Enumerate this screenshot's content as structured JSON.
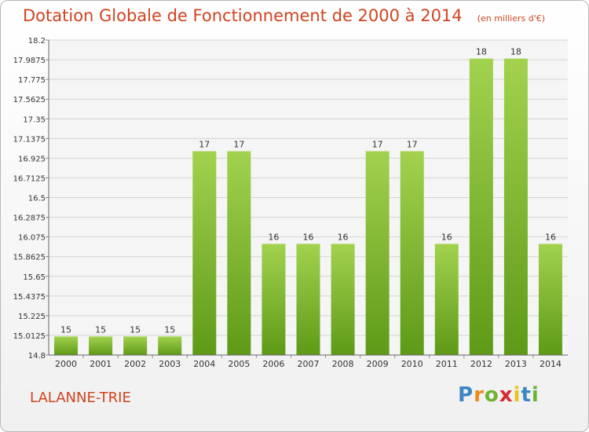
{
  "chart_data": {
    "type": "bar",
    "title": "Dotation Globale de Fonctionnement de 2000 à 2014",
    "unit": "(en milliers d'€)",
    "categories": [
      "2000",
      "2001",
      "2002",
      "2003",
      "2004",
      "2005",
      "2006",
      "2007",
      "2008",
      "2009",
      "2010",
      "2011",
      "2012",
      "2013",
      "2014"
    ],
    "values": [
      15,
      15,
      15,
      15,
      17,
      17,
      16,
      16,
      16,
      17,
      17,
      16,
      18,
      18,
      16
    ],
    "data_labels": [
      "15",
      "15",
      "15",
      "15",
      "17",
      "17",
      "16",
      "16",
      "16",
      "17",
      "17",
      "16",
      "18",
      "18",
      "16"
    ],
    "ylim": [
      14.8,
      18.2
    ],
    "yticks": [
      14.8,
      15.0125,
      15.225,
      15.4375,
      15.65,
      15.8625,
      16.075,
      16.2875,
      16.5,
      16.7125,
      16.925,
      17.1375,
      17.35,
      17.5625,
      17.775,
      17.9875,
      18.2
    ],
    "ytick_labels": [
      "14.8",
      "15.0125",
      "15.225",
      "15.4375",
      "15.65",
      "15.8625",
      "16.075",
      "16.2875",
      "16.5",
      "16.7125",
      "16.925",
      "17.1375",
      "17.35",
      "17.5625",
      "17.775",
      "17.9875",
      "18.2"
    ],
    "grid": true,
    "xlabel": "",
    "ylabel": "",
    "colors": {
      "bar_top": "#a2d24e",
      "bar_bottom": "#5e9a17",
      "grid": "#d4d4d4",
      "plot_bg": "#f5f5f5"
    }
  },
  "commune": "LALANNE-TRIE",
  "logo": {
    "letters": [
      "P",
      "r",
      "o",
      "x",
      "i",
      "t",
      "i"
    ],
    "colors": [
      "#3b86c6",
      "#e98a21",
      "#6db431",
      "#d7282f",
      "#e9c41d",
      "#3b86c6",
      "#6db431"
    ]
  }
}
